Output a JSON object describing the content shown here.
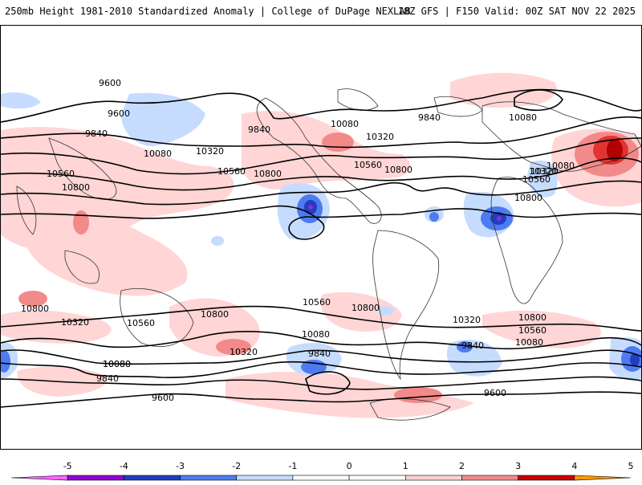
{
  "header": {
    "left_title": "250mb Height 1981-2010 Standardized Anomaly | College of DuPage NEXLAB",
    "right_title": "18Z GFS | F150 Valid: 00Z SAT NOV 22 2025"
  },
  "map": {
    "contour_labels": [
      "9600",
      "9600",
      "9840",
      "9840",
      "9840",
      "10080",
      "10080",
      "10080",
      "10320",
      "10320",
      "10320",
      "10560",
      "10560",
      "10560",
      "10800",
      "10800",
      "10800",
      "10080",
      "10320",
      "10560",
      "10800",
      "10800",
      "10800",
      "10560",
      "10800",
      "10320",
      "10560",
      "10080",
      "9840",
      "10080",
      "10320",
      "10560",
      "10800",
      "10320",
      "10080",
      "9840",
      "10080",
      "9840",
      "9600",
      "9600"
    ],
    "anomaly_colors": {
      "neg5": "#ff66ff",
      "neg4": "#8a2be2",
      "neg3": "#1f3fbf",
      "neg2": "#4f7bf0",
      "neg1": "#c6dcff",
      "zero": "#ffffff",
      "pos1": "#ffd5d5",
      "pos2": "#f28a8a",
      "pos3": "#e23232",
      "pos4": "#b30000",
      "pos5": "#ff9900"
    }
  },
  "colorbar": {
    "ticks": [
      "-5",
      "-4",
      "-3",
      "-2",
      "-1",
      "0",
      "1",
      "2",
      "3",
      "4",
      "5"
    ],
    "colors": [
      "#ff66ff",
      "#9400d3",
      "#1f3fbf",
      "#4f7bf0",
      "#c6dcff",
      "#ffffff",
      "#ffffff",
      "#ffd0d0",
      "#f28a8a",
      "#c80000",
      "#ff9900"
    ]
  }
}
